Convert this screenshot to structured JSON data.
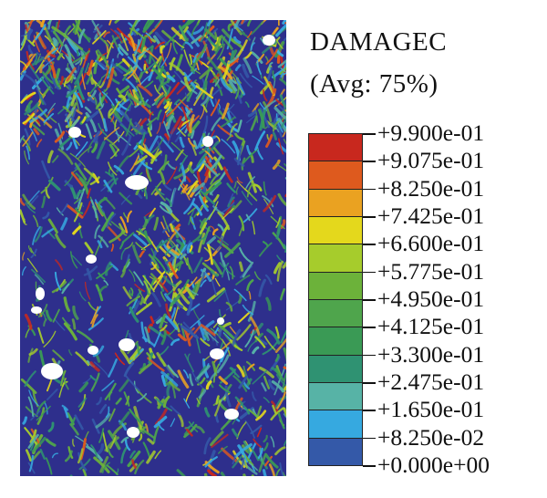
{
  "legend": {
    "title": "DAMAGEC",
    "subtitle": "(Avg: 75%)",
    "ticks": [
      "+9.900e-01",
      "+9.075e-01",
      "+8.250e-01",
      "+7.425e-01",
      "+6.600e-01",
      "+5.775e-01",
      "+4.950e-01",
      "+4.125e-01",
      "+3.300e-01",
      "+2.475e-01",
      "+1.650e-01",
      "+8.250e-02",
      "+0.000e+00"
    ],
    "colors": [
      "#c8281e",
      "#de5a1e",
      "#eaa221",
      "#e4d81c",
      "#a6cc2c",
      "#6cb23a",
      "#4fa54c",
      "#3a9a55",
      "#2f9272",
      "#57b3a6",
      "#36a9e0",
      "#3459a8"
    ]
  },
  "contour": {
    "background_color": "#2e2f8c",
    "hole_color": "#ffffff"
  }
}
